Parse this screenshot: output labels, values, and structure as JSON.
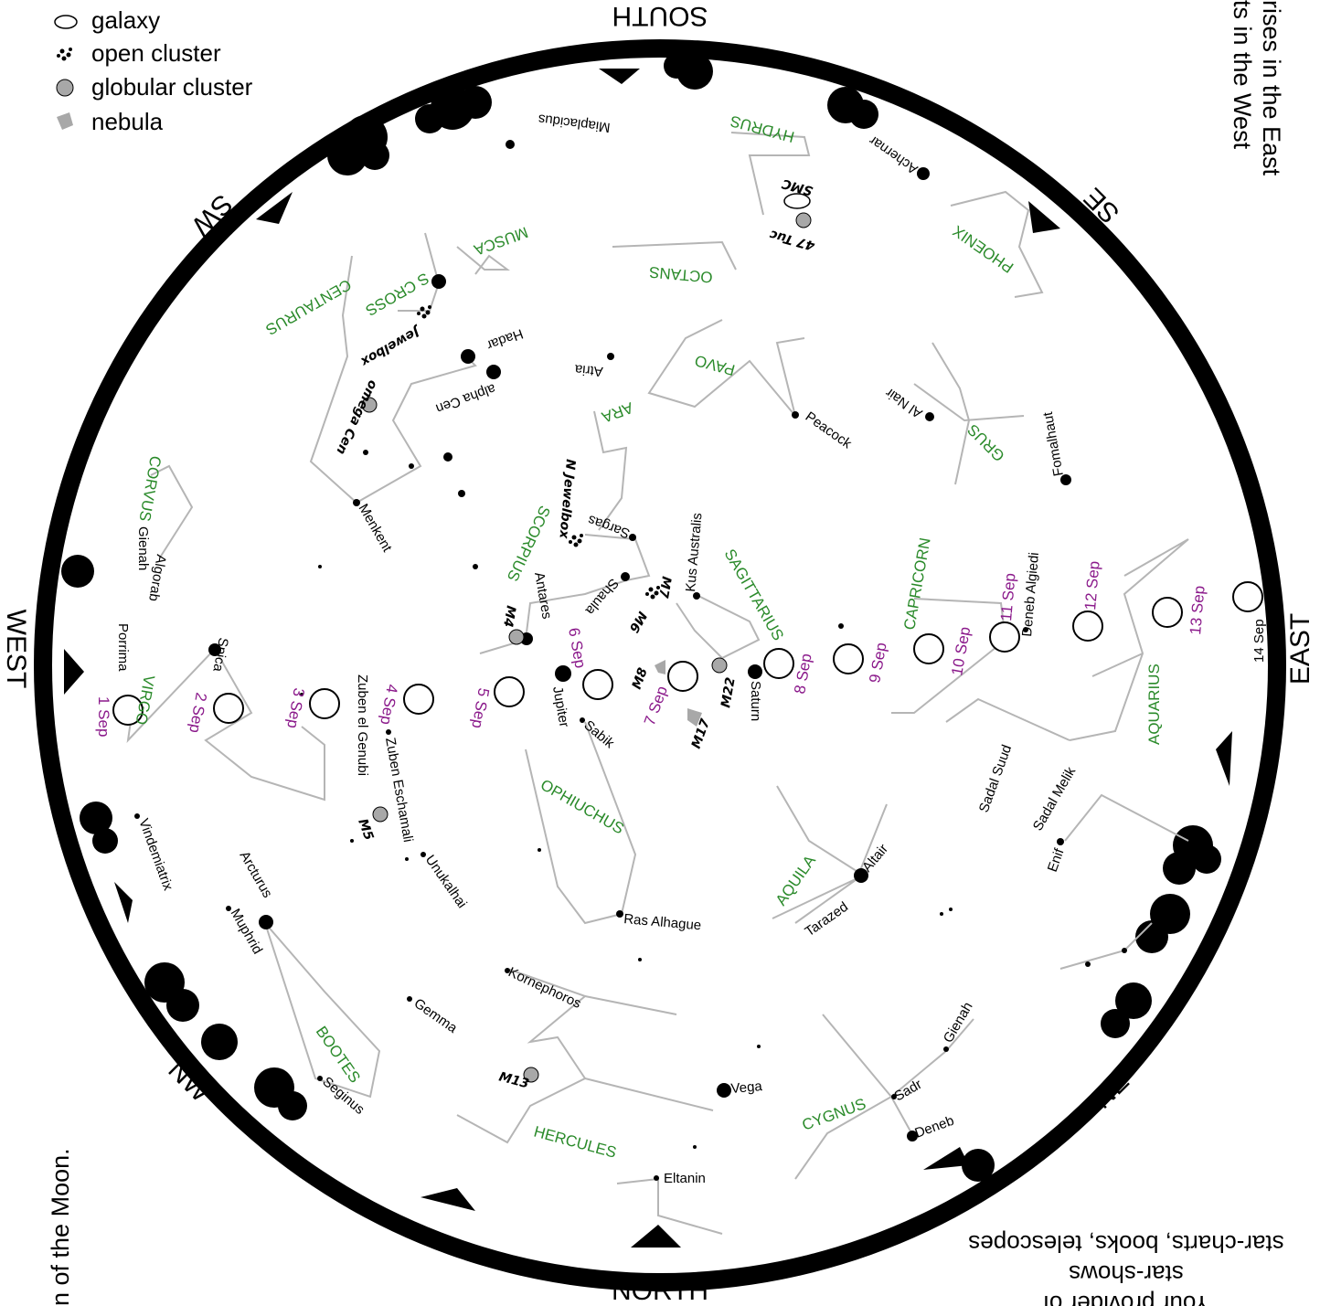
{
  "legend": {
    "galaxy": "galaxy",
    "open_cluster": "open cluster",
    "globular_cluster": "globular cluster",
    "nebula": "nebula"
  },
  "directions": {
    "south": "SOUTH",
    "north": "NORTH",
    "east": "EAST",
    "west": "WEST",
    "sw": "SW",
    "se": "SE",
    "nw": "NW",
    "ne": "NE"
  },
  "side_text": {
    "top_right_1": "rises in the East",
    "top_right_2": "ts in the West",
    "left_bottom": "n of the Moon.",
    "bottom_right_1": "star-charts, books, telescopes",
    "bottom_right_2": "star-shows",
    "bottom_right_3": "Your provider of"
  },
  "constellations": {
    "hydrus": "HYDRUS",
    "phoenix": "PHOENIX",
    "octans": "OCTANS",
    "musca": "MUSCA",
    "centaurus": "CENTAURUS",
    "s_cross": "S CROSS",
    "pavo": "PAVO",
    "ara": "ARA",
    "grus": "GRUS",
    "corvus": "CORVUS",
    "scorpius": "SCORPIUS",
    "sagittarius": "SAGITTARIUS",
    "capricorn": "CAPRICORN",
    "aquarius": "AQUARIUS",
    "virgo": "VIRGO",
    "ophiuchus": "OPHIUCHUS",
    "aquila": "AQUILA",
    "bootes": "BOOTES",
    "hercules": "HERCULES",
    "cygnus": "CYGNUS"
  },
  "stars": {
    "miaplacidus": "Miaplacidus",
    "achernar": "Achernar",
    "hadar": "Hadar",
    "alpha_cen": "alpha Cen",
    "atria": "Atria",
    "al_nair": "Al Nair",
    "peacock": "Peacock",
    "fomalhaut": "Fomalhaut",
    "menkent": "Menkent",
    "sargas": "Sargas",
    "kus_australis": "Kus Australis",
    "algorab": "Algorab",
    "gienah_crv": "Gienah",
    "spica": "Spica",
    "porrima": "Porrima",
    "antares": "Antares",
    "shaula": "Shaula",
    "deneb_algiedi": "Deneb Algiedi",
    "jupiter": "Jupiter",
    "saturn": "Saturn",
    "sabik": "Sabik",
    "zuben_el_genubi": "Zuben el Genubi",
    "zuben_eschamali": "Zuben Eschamali",
    "sadal_suud": "Sadal Suud",
    "sadal_melik": "Sadal Melik",
    "enif": "Enif",
    "vindemiatrix": "Vindemiatrix",
    "unukalhai": "Unukalhai",
    "arcturus": "Arcturus",
    "muphrid": "Muphrid",
    "ras_alhague": "Ras Alhague",
    "tarazed": "Tarazed",
    "altair": "Altair",
    "kornephoros": "Kornephoros",
    "gemma": "Gemma",
    "vega": "Vega",
    "seginus": "Seginus",
    "gienah_cyg": "Gienah",
    "sadr": "Sadr",
    "deneb": "Deneb",
    "eltanin": "Eltanin"
  },
  "objects": {
    "smc": "SMC",
    "tuc47": "47 Tuc",
    "jewelbox": "Jewelbox",
    "omega_cen": "omega Cen",
    "n_jewelbox": "N Jewelbox",
    "m4": "M4",
    "m6": "M6",
    "m7": "M7",
    "m8": "M8",
    "m22": "M22",
    "m17": "M17",
    "m5": "M5",
    "m13": "M13"
  },
  "moon_dates": {
    "d1": "1 Sep",
    "d2": "2 Sep",
    "d3": "3 Sep",
    "d4": "4 Sep",
    "d5": "5 Sep",
    "d6": "6 Sep",
    "d7": "7 Sep",
    "d8": "8 Sep",
    "d9": "9 Sep",
    "d10": "10 Sep",
    "d11": "11 Sep",
    "d12": "12 Sep",
    "d13": "13 Sep",
    "d14": "14 Sep"
  }
}
